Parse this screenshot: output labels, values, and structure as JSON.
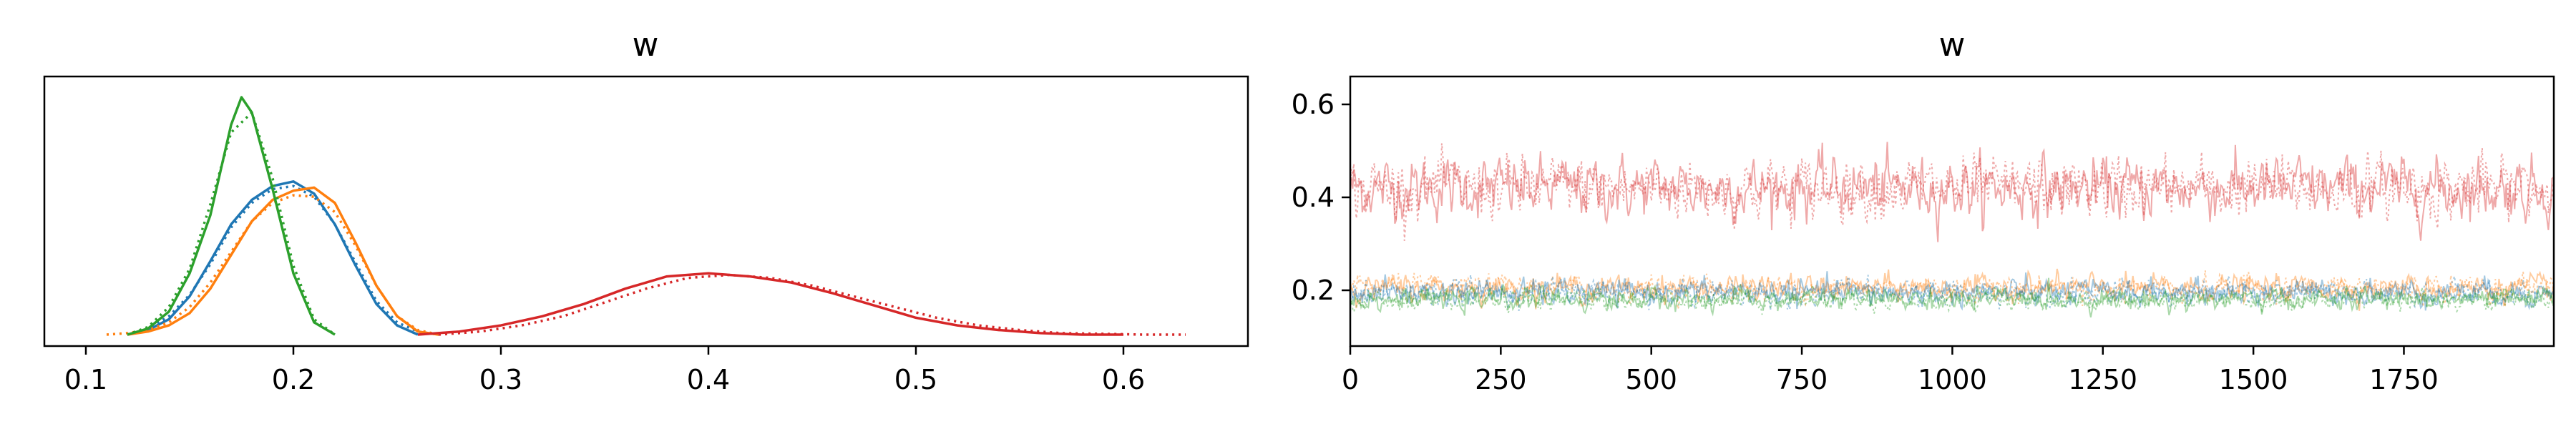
{
  "chart_data": [
    {
      "type": "line",
      "subtype": "kde",
      "title": "w",
      "xlabel": "",
      "ylabel": "",
      "xlim": [
        0.08,
        0.66
      ],
      "xticks": [
        0.1,
        0.2,
        0.3,
        0.4,
        0.5,
        0.6
      ],
      "xtick_labels": [
        "0.1",
        "0.2",
        "0.3",
        "0.4",
        "0.5",
        "0.6"
      ],
      "yticks": [],
      "grid": false,
      "series": [
        {
          "color": "#1f77b4",
          "solid": {
            "x": [
              0.12,
              0.13,
              0.14,
              0.15,
              0.16,
              0.17,
              0.18,
              0.19,
              0.2,
              0.21,
              0.22,
              0.23,
              0.24,
              0.25,
              0.26
            ],
            "y": [
              0.0,
              0.03,
              0.1,
              0.25,
              0.48,
              0.72,
              0.88,
              0.97,
              1.0,
              0.92,
              0.72,
              0.45,
              0.2,
              0.06,
              0.0
            ]
          },
          "dotted": {
            "x": [
              0.12,
              0.13,
              0.14,
              0.15,
              0.16,
              0.17,
              0.18,
              0.19,
              0.2,
              0.21,
              0.22,
              0.23,
              0.24,
              0.25,
              0.26,
              0.27
            ],
            "y": [
              0.0,
              0.04,
              0.12,
              0.26,
              0.46,
              0.7,
              0.86,
              0.95,
              0.97,
              0.9,
              0.72,
              0.47,
              0.22,
              0.08,
              0.02,
              0.0
            ]
          }
        },
        {
          "color": "#ff7f0e",
          "solid": {
            "x": [
              0.12,
              0.13,
              0.14,
              0.15,
              0.16,
              0.17,
              0.18,
              0.19,
              0.2,
              0.21,
              0.22,
              0.23,
              0.24,
              0.25,
              0.26,
              0.27
            ],
            "y": [
              0.0,
              0.02,
              0.06,
              0.14,
              0.3,
              0.52,
              0.74,
              0.88,
              0.94,
              0.96,
              0.86,
              0.6,
              0.32,
              0.12,
              0.02,
              0.0
            ]
          },
          "dotted": {
            "x": [
              0.11,
              0.12,
              0.13,
              0.14,
              0.15,
              0.16,
              0.17,
              0.18,
              0.19,
              0.2,
              0.21,
              0.22,
              0.23,
              0.24,
              0.25,
              0.26,
              0.27
            ],
            "y": [
              0.0,
              0.01,
              0.03,
              0.08,
              0.18,
              0.34,
              0.54,
              0.74,
              0.86,
              0.91,
              0.9,
              0.8,
              0.58,
              0.32,
              0.12,
              0.03,
              0.0
            ]
          }
        },
        {
          "color": "#2ca02c",
          "solid": {
            "x": [
              0.12,
              0.13,
              0.14,
              0.15,
              0.16,
              0.17,
              0.175,
              0.18,
              0.19,
              0.2,
              0.21,
              0.22
            ],
            "y": [
              0.0,
              0.04,
              0.15,
              0.4,
              0.78,
              1.37,
              1.55,
              1.45,
              0.95,
              0.4,
              0.08,
              0.0
            ]
          },
          "dotted": {
            "x": [
              0.12,
              0.13,
              0.14,
              0.15,
              0.16,
              0.17,
              0.18,
              0.19,
              0.2,
              0.21,
              0.22
            ],
            "y": [
              0.0,
              0.05,
              0.18,
              0.43,
              0.85,
              1.32,
              1.45,
              1.02,
              0.45,
              0.1,
              0.0
            ]
          }
        },
        {
          "color": "#d62728",
          "solid": {
            "x": [
              0.26,
              0.28,
              0.3,
              0.32,
              0.34,
              0.36,
              0.38,
              0.4,
              0.42,
              0.44,
              0.46,
              0.48,
              0.5,
              0.52,
              0.54,
              0.56,
              0.58,
              0.6
            ],
            "y": [
              0.0,
              0.02,
              0.06,
              0.12,
              0.2,
              0.3,
              0.38,
              0.4,
              0.38,
              0.34,
              0.27,
              0.19,
              0.11,
              0.06,
              0.03,
              0.01,
              0.0,
              0.0
            ]
          },
          "dotted": {
            "x": [
              0.27,
              0.29,
              0.31,
              0.33,
              0.35,
              0.37,
              0.39,
              0.41,
              0.43,
              0.45,
              0.47,
              0.49,
              0.51,
              0.53,
              0.55,
              0.57,
              0.59,
              0.61,
              0.63
            ],
            "y": [
              0.0,
              0.02,
              0.06,
              0.12,
              0.21,
              0.3,
              0.37,
              0.39,
              0.37,
              0.32,
              0.25,
              0.18,
              0.11,
              0.06,
              0.03,
              0.01,
              0.005,
              0.0,
              0.0
            ]
          }
        }
      ]
    },
    {
      "type": "line",
      "subtype": "trace",
      "title": "w",
      "xlabel": "",
      "ylabel": "",
      "xlim": [
        0,
        1999
      ],
      "ylim": [
        0.08,
        0.66
      ],
      "xticks": [
        0,
        250,
        500,
        750,
        1000,
        1250,
        1500,
        1750
      ],
      "xtick_labels": [
        "0",
        "250",
        "500",
        "750",
        "1000",
        "1250",
        "1500",
        "1750"
      ],
      "yticks": [
        0.2,
        0.4,
        0.6
      ],
      "ytick_labels": [
        "0.2",
        "0.4",
        "0.6"
      ],
      "grid": false,
      "series": [
        {
          "color": "#d62728",
          "mean": 0.42,
          "sd": 0.052
        },
        {
          "color": "#ff7f0e",
          "mean": 0.205,
          "sd": 0.022
        },
        {
          "color": "#1f77b4",
          "mean": 0.195,
          "sd": 0.022
        },
        {
          "color": "#2ca02c",
          "mean": 0.18,
          "sd": 0.018
        }
      ],
      "n_draws": 2000
    }
  ]
}
